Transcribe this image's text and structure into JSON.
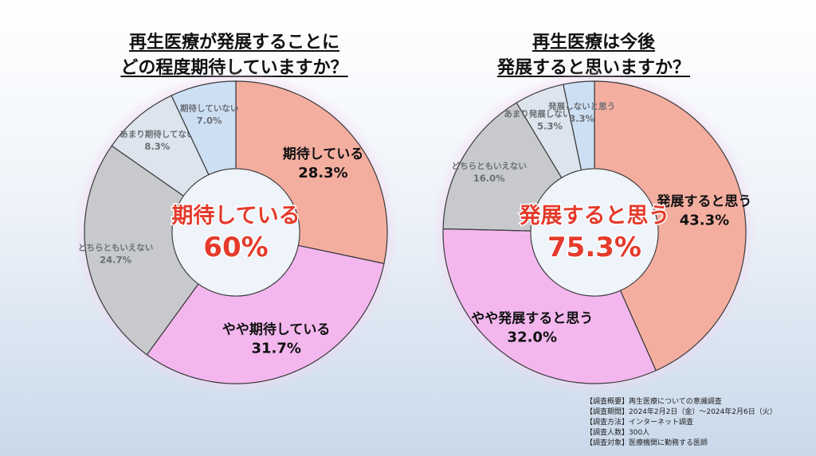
{
  "chart_data": [
    {
      "type": "pie",
      "variant": "donut",
      "title_lines": [
        "再生医療が発展することに",
        "どの程度期待していますか？"
      ],
      "slices": [
        {
          "label": "期待している",
          "value": 28.3,
          "value_text": "28.3%",
          "color": "#f4aea0",
          "label_style": "large"
        },
        {
          "label": "やや期待している",
          "value": 31.7,
          "value_text": "31.7%",
          "color": "#f3b7ee",
          "label_style": "large"
        },
        {
          "label": "どちらともいえない",
          "value": 24.7,
          "value_text": "24.7%",
          "color": "#c8c9cc",
          "label_style": "small"
        },
        {
          "label": "あまり期待してない",
          "value": 8.3,
          "value_text": "8.3%",
          "color": "#dde4ed",
          "label_style": "small"
        },
        {
          "label": "期待していない",
          "value": 7.0,
          "value_text": "7.0%",
          "color": "#cddff3",
          "label_style": "small"
        }
      ],
      "center_label": "期待している",
      "center_value": "60%"
    },
    {
      "type": "pie",
      "variant": "donut",
      "title_lines": [
        "再生医療は今後",
        "発展すると思いますか？"
      ],
      "slices": [
        {
          "label": "発展すると思う",
          "value": 43.3,
          "value_text": "43.3%",
          "color": "#f4aea0",
          "label_style": "large"
        },
        {
          "label": "やや発展すると思う",
          "value": 32.0,
          "value_text": "32.0%",
          "color": "#f3b7ee",
          "label_style": "large"
        },
        {
          "label": "どちらともいえない",
          "value": 16.0,
          "value_text": "16.0%",
          "color": "#c8c9cc",
          "label_style": "small"
        },
        {
          "label": "あまり発展しないと思う",
          "value": 5.3,
          "value_text": "5.3%",
          "color": "#dde4ed",
          "label_style": "small"
        },
        {
          "label": "発展しないと思う",
          "value": 3.3,
          "value_text": "3.3%",
          "color": "#cddff3",
          "label_style": "small"
        }
      ],
      "center_label": "発展すると思う",
      "center_value": "75.3%"
    }
  ],
  "survey_info": [
    "【調査概要】再生医療についての意識調査",
    "【調査期間】2024年2月2日（金）～2024年2月6日（火）",
    "【調査方法】インターネット調査",
    "【調査人数】300人",
    "【調査対象】医療機関に勤務する医師"
  ],
  "colors": {
    "center_text": "#e43b2c",
    "label_dark": "#111111",
    "label_muted": "#6b6f75",
    "slice_border": "#3a3a3a"
  }
}
